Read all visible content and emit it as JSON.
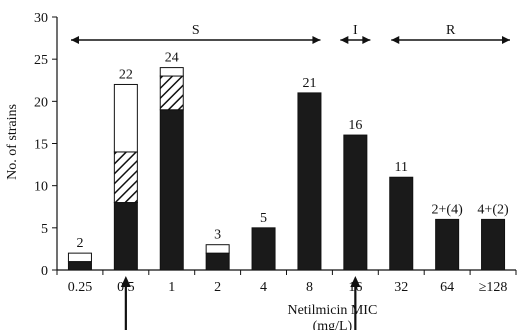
{
  "chart_data": {
    "type": "bar",
    "stacked": true,
    "categories": [
      "0.25",
      "0.5",
      "1",
      "2",
      "4",
      "8",
      "16",
      "32",
      "64",
      "≥128"
    ],
    "series": [
      {
        "style": "solid",
        "values": [
          1,
          8,
          19,
          2,
          5,
          21,
          16,
          11,
          6,
          6
        ]
      },
      {
        "style": "hatched",
        "values": [
          0,
          6,
          4,
          0,
          0,
          0,
          0,
          0,
          0,
          0
        ]
      },
      {
        "style": "open",
        "values": [
          1,
          8,
          1,
          1,
          0,
          0,
          0,
          0,
          0,
          0
        ]
      }
    ],
    "data_labels": [
      "2",
      "22",
      "24",
      "3",
      "5",
      "21",
      "16",
      "11",
      "2+(4)",
      "4+(2)"
    ],
    "xlabel": "Netilmicin MIC (mg/L)",
    "ylabel": "No. of strains",
    "ylim": [
      0,
      30
    ],
    "yticks": [
      0,
      5,
      10,
      15,
      20,
      25,
      30
    ],
    "grid": false,
    "regions": [
      {
        "label": "S",
        "from_category": "0.25",
        "to_category": "8"
      },
      {
        "label": "I",
        "from_category": "16",
        "to_category": "16"
      },
      {
        "label": "R",
        "from_category": "32",
        "to_category": "≥128"
      }
    ],
    "breakpoint_arrows": [
      "0.5",
      "16"
    ]
  }
}
